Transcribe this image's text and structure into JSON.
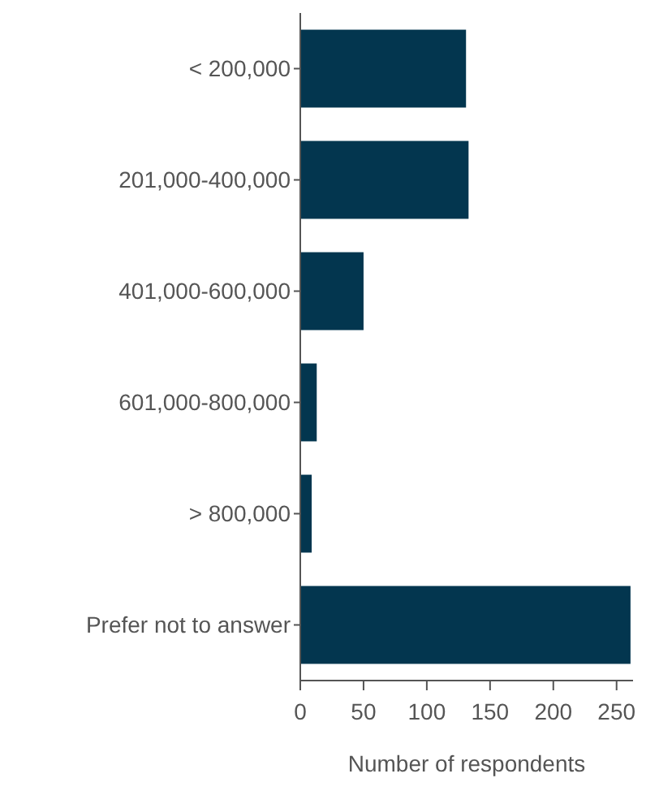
{
  "chart_data": {
    "type": "bar",
    "orientation": "horizontal",
    "categories": [
      "< 200,000",
      "201,000-400,000",
      "401,000-600,000",
      "601,000-800,000",
      "> 800,000",
      "Prefer not to answer"
    ],
    "values": [
      131,
      133,
      50,
      13,
      9,
      261
    ],
    "color": "#03364f",
    "xlim": [
      0,
      263
    ],
    "xticks": [
      0,
      50,
      100,
      150,
      200,
      250
    ],
    "xlabel": "Number of respondents",
    "grid": false
  }
}
